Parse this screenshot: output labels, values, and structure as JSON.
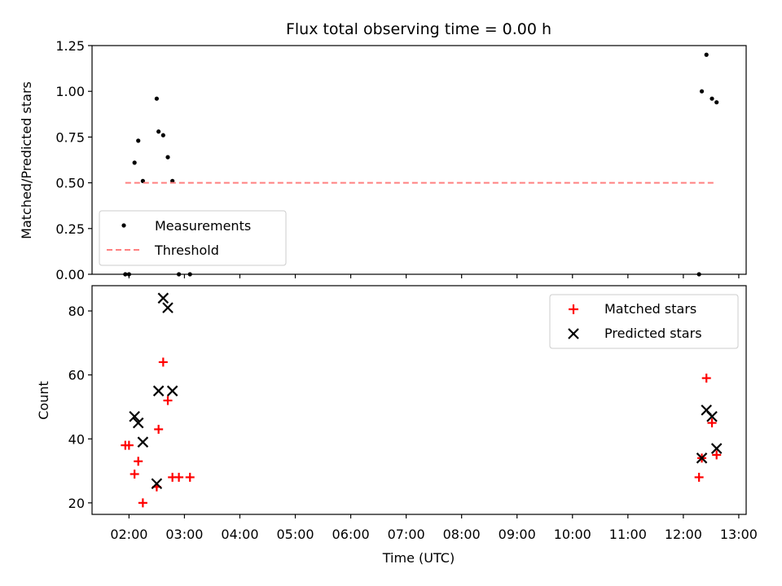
{
  "title": "Flux total observing time = 0.00 h",
  "xlabel": "Time (UTC)",
  "x_ticks": [
    "02:00",
    "03:00",
    "04:00",
    "05:00",
    "06:00",
    "07:00",
    "08:00",
    "09:00",
    "10:00",
    "11:00",
    "12:00",
    "13:00"
  ],
  "colors": {
    "measurements": "#000000",
    "threshold": "#ff8080",
    "matched": "#ff0000",
    "predicted": "#000000"
  },
  "chart_data": [
    {
      "type": "scatter",
      "ylabel": "Matched/Predicted stars",
      "xlim": [
        "01:20",
        "13:08"
      ],
      "ylim": [
        0,
        1.25
      ],
      "y_ticks": [
        "0.00",
        "0.25",
        "0.50",
        "0.75",
        "1.00",
        "1.25"
      ],
      "legend": {
        "placement": "lower-left",
        "entries": [
          "Measurements",
          "Threshold"
        ]
      },
      "series": [
        {
          "name": "Measurements",
          "marker": "dot",
          "points": [
            [
              "01:56",
              0.0
            ],
            [
              "02:00",
              0.0
            ],
            [
              "02:06",
              0.61
            ],
            [
              "02:10",
              0.73
            ],
            [
              "02:15",
              0.51
            ],
            [
              "02:30",
              0.96
            ],
            [
              "02:32",
              0.78
            ],
            [
              "02:37",
              0.76
            ],
            [
              "02:42",
              0.64
            ],
            [
              "02:47",
              0.51
            ],
            [
              "02:54",
              0.0
            ],
            [
              "03:06",
              0.0
            ],
            [
              "12:17",
              0.0
            ],
            [
              "12:20",
              1.0
            ],
            [
              "12:25",
              1.2
            ],
            [
              "12:31",
              0.96
            ],
            [
              "12:36",
              0.94
            ]
          ]
        },
        {
          "name": "Threshold",
          "marker": "dashed-line",
          "points": [
            [
              "01:56",
              0.5
            ],
            [
              "12:36",
              0.5
            ]
          ]
        }
      ]
    },
    {
      "type": "scatter",
      "ylabel": "Count",
      "xlim": [
        "01:20",
        "13:08"
      ],
      "ylim": [
        16.4,
        87.9
      ],
      "y_ticks": [
        "20",
        "40",
        "60",
        "80"
      ],
      "legend": {
        "placement": "top-right",
        "entries": [
          "Matched stars",
          "Predicted stars"
        ]
      },
      "series": [
        {
          "name": "Matched stars",
          "marker": "plus",
          "points": [
            [
              "01:56",
              38
            ],
            [
              "02:00",
              38
            ],
            [
              "02:06",
              29
            ],
            [
              "02:10",
              33
            ],
            [
              "02:15",
              20
            ],
            [
              "02:30",
              25
            ],
            [
              "02:32",
              43
            ],
            [
              "02:37",
              64
            ],
            [
              "02:42",
              52
            ],
            [
              "02:47",
              28
            ],
            [
              "02:54",
              28
            ],
            [
              "03:06",
              28
            ],
            [
              "12:17",
              28
            ],
            [
              "12:20",
              34
            ],
            [
              "12:25",
              59
            ],
            [
              "12:31",
              45
            ],
            [
              "12:36",
              35
            ]
          ]
        },
        {
          "name": "Predicted stars",
          "marker": "x",
          "points": [
            [
              "02:06",
              47
            ],
            [
              "02:10",
              45
            ],
            [
              "02:15",
              39
            ],
            [
              "02:30",
              26
            ],
            [
              "02:32",
              55
            ],
            [
              "02:37",
              84
            ],
            [
              "02:42",
              81
            ],
            [
              "02:47",
              55
            ],
            [
              "12:20",
              34
            ],
            [
              "12:25",
              49
            ],
            [
              "12:31",
              47
            ],
            [
              "12:36",
              37
            ]
          ]
        }
      ]
    }
  ]
}
